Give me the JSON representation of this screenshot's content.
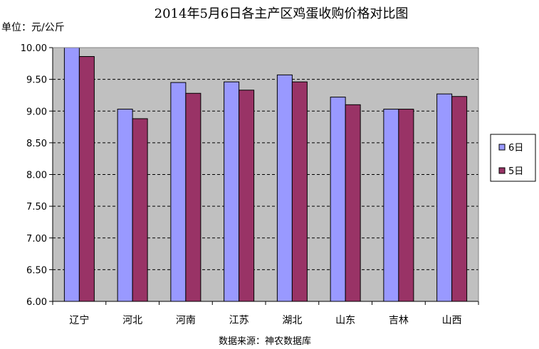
{
  "chart_data": {
    "type": "bar",
    "title": "2014年5月6日各主产区鸡蛋收购价格对比图",
    "unit_label": "单位：元/公斤",
    "source": "数据来源：神农数据库",
    "categories": [
      "辽宁",
      "河北",
      "河南",
      "江苏",
      "湖北",
      "山东",
      "吉林",
      "山西"
    ],
    "series": [
      {
        "name": "6日",
        "color": "#9999ff",
        "values": [
          10.0,
          9.03,
          9.45,
          9.46,
          9.57,
          9.22,
          9.03,
          9.27
        ]
      },
      {
        "name": "5日",
        "color": "#993366",
        "values": [
          9.86,
          8.88,
          9.28,
          9.33,
          9.46,
          9.1,
          9.03,
          9.23
        ]
      }
    ],
    "ylim": [
      6.0,
      10.0
    ],
    "yticks": [
      "6.00",
      "6.50",
      "7.00",
      "7.50",
      "8.00",
      "8.50",
      "9.00",
      "9.50",
      "10.00"
    ],
    "grid": true,
    "plot_background": "#c0c0c0",
    "legend_position": "right"
  }
}
